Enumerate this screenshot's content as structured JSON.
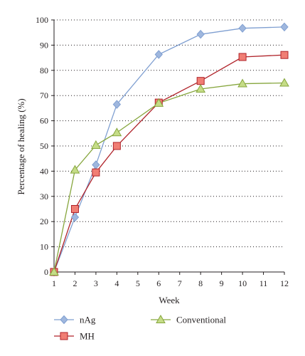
{
  "chart_data": {
    "type": "line",
    "title": "",
    "xlabel": "Week",
    "ylabel": "Percentage of healing (%)",
    "x_ticks": [
      1,
      2,
      3,
      4,
      5,
      6,
      7,
      8,
      9,
      10,
      11,
      12
    ],
    "y_ticks": [
      0,
      10,
      20,
      30,
      40,
      50,
      60,
      70,
      80,
      90,
      100
    ],
    "xlim": [
      1,
      12
    ],
    "ylim": [
      0,
      100
    ],
    "grid": "horizontal dotted",
    "legend_position": "bottom",
    "x": [
      1,
      2,
      3,
      4,
      6,
      8,
      10,
      12
    ],
    "series": [
      {
        "name": "nAg",
        "marker": "diamond",
        "color": "#7f9fd1",
        "fill": "#9fb7de",
        "values": [
          0,
          21.7,
          42.5,
          66.5,
          86.3,
          94.3,
          96.7,
          97.2
        ]
      },
      {
        "name": "MH",
        "marker": "square",
        "color": "#b0232a",
        "fill": "#f07e74",
        "values": [
          0,
          25,
          39.5,
          50,
          67.2,
          75.8,
          85.3,
          86.1
        ]
      },
      {
        "name": "Conventional",
        "marker": "triangle",
        "color": "#86a63d",
        "fill": "#c5dc87",
        "values": [
          0,
          40.5,
          50.3,
          55.3,
          67.0,
          72.6,
          74.7,
          75.0
        ]
      }
    ]
  }
}
